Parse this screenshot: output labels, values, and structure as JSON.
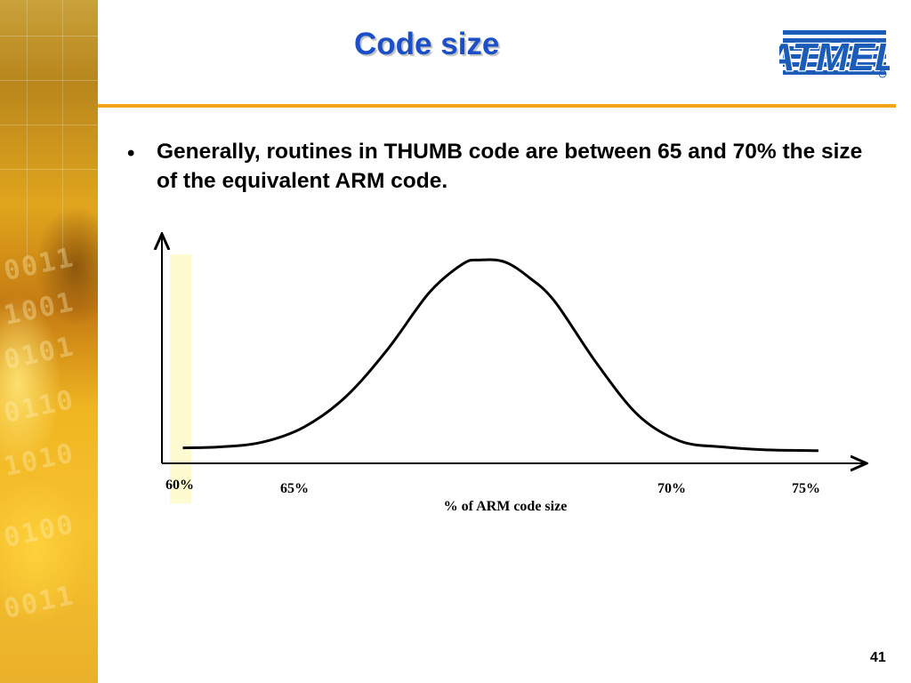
{
  "slide": {
    "title": "Code size",
    "bullet": "Generally, routines in THUMB code are between 65 and 70% the size of the equivalent ARM code.",
    "bullet_marker": "•",
    "page_number": "41"
  },
  "logo": {
    "text": "ATMEL",
    "registered_mark": "R",
    "color": "#1a5cb8"
  },
  "colors": {
    "title": "#1a4fc8",
    "rule": "#f3a417",
    "highlight": "#fffbd0"
  },
  "chart_data": {
    "type": "line",
    "title": "",
    "xlabel": "% of ARM code size",
    "ylabel": "",
    "x_ticks": [
      "60%",
      "65%",
      "70%",
      "75%"
    ],
    "highlight_tick": "60%",
    "curve_shape": "bell",
    "x": [
      60.1,
      61,
      62,
      63,
      64,
      65,
      66,
      66.8,
      67.2,
      67.8,
      68.4,
      69,
      70,
      71,
      72,
      73,
      74,
      75.3
    ],
    "y": [
      0.06,
      0.07,
      0.12,
      0.28,
      0.6,
      1.1,
      1.7,
      2.0,
      2.04,
      2.02,
      1.85,
      1.6,
      0.95,
      0.4,
      0.13,
      0.07,
      0.04,
      0.03
    ],
    "ylim": [
      0,
      2.25
    ],
    "grid": false
  }
}
